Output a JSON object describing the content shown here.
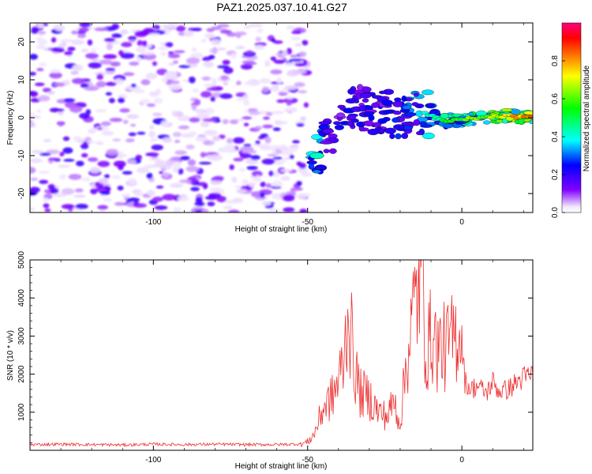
{
  "title": "PAZ1.2025.037.10.41.G27",
  "chart_data": [
    {
      "type": "heatmap",
      "xlabel": "Height of straight line (km)",
      "ylabel": "Frequency (Hz)",
      "xlim": [
        -140,
        23
      ],
      "ylim": [
        -25,
        25
      ],
      "x_ticks": [
        -100,
        -50,
        0
      ],
      "y_ticks": [
        -20,
        -10,
        0,
        10,
        20
      ],
      "colorbar": {
        "label": "Normalized spectral amplitude",
        "range": [
          0,
          1
        ],
        "ticks": [
          0.0,
          0.2,
          0.4,
          0.6,
          0.8
        ],
        "colors": [
          "#ffffff",
          "#8000ff",
          "#0000ff",
          "#00ffff",
          "#00ff00",
          "#ffff00",
          "#ff8000",
          "#ff0000",
          "#ff0080"
        ]
      },
      "ridge": [
        {
          "x": -47,
          "y": -10,
          "amp": 0.45
        },
        {
          "x": -42,
          "y": -3,
          "amp": 0.3
        },
        {
          "x": -34,
          "y": 3,
          "amp": 0.3
        },
        {
          "x": -25,
          "y": 1,
          "amp": 0.3
        },
        {
          "x": -12,
          "y": 1,
          "amp": 0.45
        },
        {
          "x": -5,
          "y": -1,
          "amp": 0.55
        },
        {
          "x": 5,
          "y": 0,
          "amp": 0.7
        },
        {
          "x": 15,
          "y": 0.5,
          "amp": 0.8
        },
        {
          "x": 22,
          "y": 0,
          "amp": 0.95
        }
      ]
    },
    {
      "type": "line",
      "xlabel": "Height of straight line (km)",
      "ylabel": "SNR (10 * v/v)",
      "xlim": [
        -140,
        23
      ],
      "ylim": [
        0,
        5000
      ],
      "x_ticks": [
        -100,
        -50,
        0
      ],
      "y_ticks": [
        1000,
        2000,
        3000,
        4000,
        5000
      ],
      "color": "#ee3030",
      "x": [
        -140,
        -130,
        -120,
        -110,
        -100,
        -90,
        -80,
        -70,
        -60,
        -55,
        -52,
        -50,
        -48,
        -45,
        -42,
        -40,
        -38,
        -37,
        -35,
        -33,
        -30,
        -27,
        -24,
        -22,
        -20,
        -18,
        -16,
        -14,
        -13,
        -12,
        -11,
        -10,
        -8,
        -5,
        -3,
        -2,
        -1,
        0,
        1,
        3,
        5,
        8,
        10,
        12,
        15,
        18,
        20,
        23
      ],
      "y": [
        150,
        160,
        150,
        140,
        160,
        150,
        160,
        150,
        150,
        160,
        170,
        220,
        400,
        1100,
        1400,
        1800,
        2500,
        3800,
        2300,
        1500,
        1400,
        1000,
        900,
        1300,
        700,
        2300,
        3500,
        4300,
        5000,
        3000,
        2600,
        3100,
        2700,
        2700,
        2900,
        3000,
        3200,
        3000,
        1800,
        1600,
        1700,
        1500,
        1800,
        1550,
        1600,
        1800,
        1900,
        2000
      ]
    }
  ]
}
